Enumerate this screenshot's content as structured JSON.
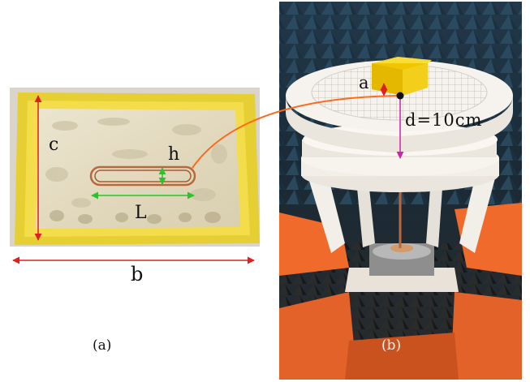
{
  "panel_a": {
    "labels": {
      "c": "c",
      "h": "h",
      "L": "L",
      "b": "b"
    },
    "caption": "(a)"
  },
  "panel_b": {
    "labels": {
      "a": "a",
      "d": "d=10cm"
    },
    "caption": "(b)"
  },
  "colors": {
    "tray_yellow": "#e9d23b",
    "sand": "#e4dcc4",
    "coil_copper": "#b8683c",
    "arrow_red": "#e02020",
    "arrow_green": "#2fc02f",
    "arrow_magenta": "#d620a8",
    "connector_orange": "#ff6a1a",
    "foam_orange": "#f06a2c",
    "fixture_white": "#f2efe9",
    "chamber_dark": "#15222c"
  }
}
